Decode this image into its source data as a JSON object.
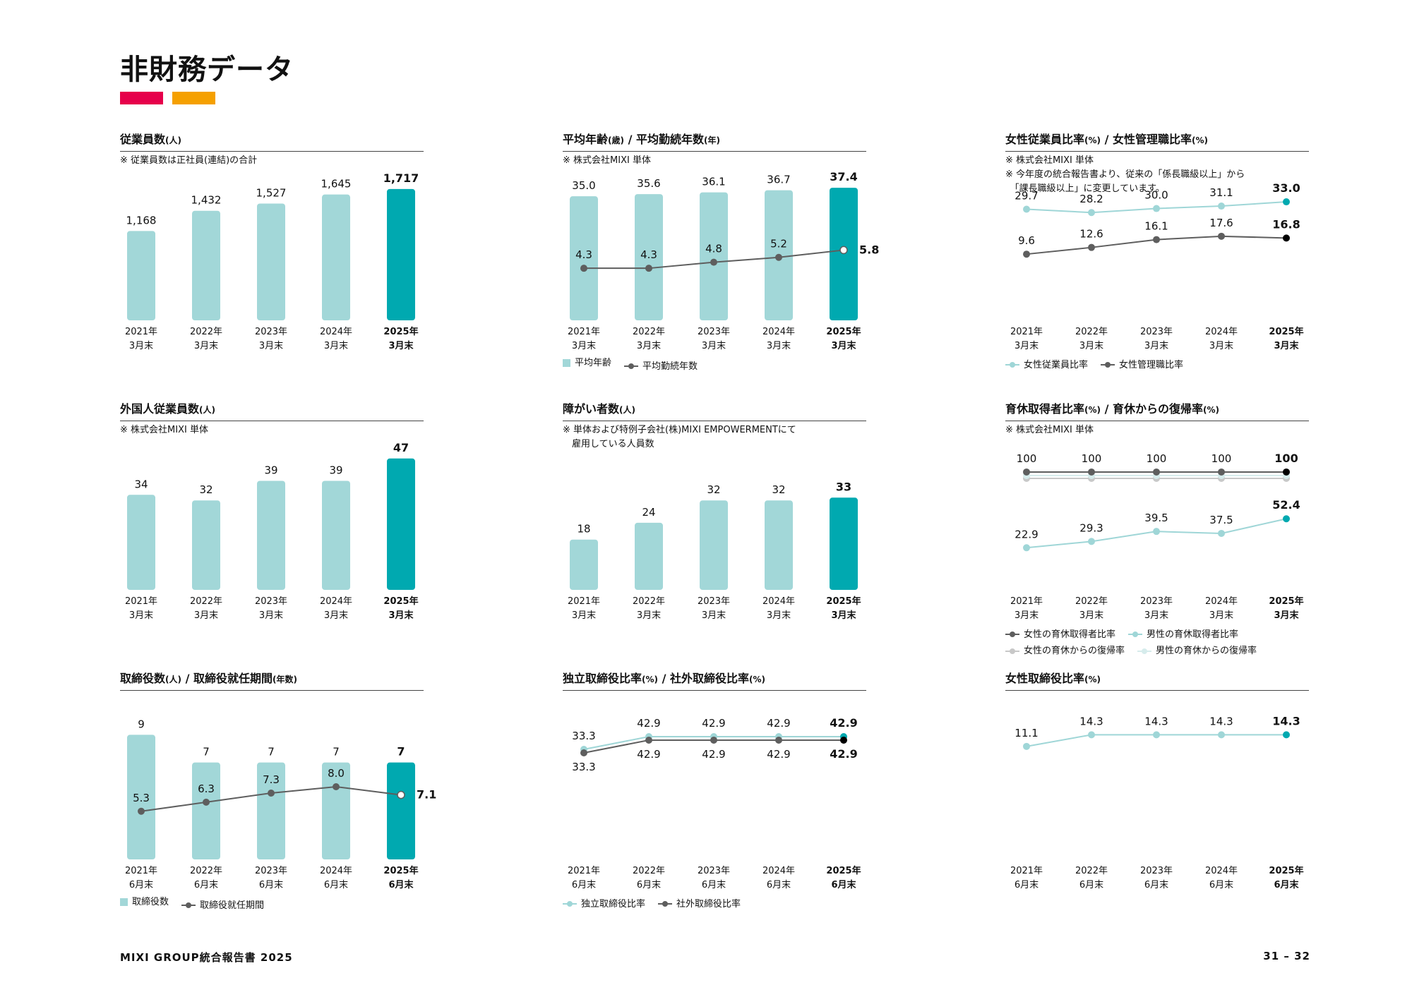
{
  "title": "非財務データ",
  "colors": {
    "accent_red": "#e6004b",
    "accent_orange": "#f5a000",
    "bar_light": "#a2d7d8",
    "bar_dark": "#00a9b0",
    "line_dark": "#5e5e5e",
    "line_light": "#9fd6d7",
    "line_grey": "#c8c8c8",
    "line_pale": "#d6ecec"
  },
  "footer": {
    "left": "MIXI GROUP統合報告書 2025",
    "right": "31 – 32"
  },
  "chart_data": [
    {
      "id": "employees",
      "type": "bar",
      "title": "従業員数",
      "unit": "(人)",
      "notes": [
        "※ 従業員数は正社員(連結)の合計"
      ],
      "categories": [
        [
          "2021年",
          "3月末"
        ],
        [
          "2022年",
          "3月末"
        ],
        [
          "2023年",
          "3月末"
        ],
        [
          "2024年",
          "3月末"
        ],
        [
          "2025年",
          "3月末"
        ]
      ],
      "bars": {
        "name": "",
        "values": [
          1168,
          1432,
          1527,
          1645,
          1717
        ],
        "labels": [
          "1,168",
          "1,432",
          "1,527",
          "1,645",
          "1,717"
        ],
        "ylim": [
          0,
          1900
        ]
      },
      "lines": [],
      "legend": []
    },
    {
      "id": "age-tenure",
      "type": "bar+line",
      "title": "平均年齢",
      "unit": "(歳)",
      "title2": "平均勤続年数",
      "unit2": "(年)",
      "notes": [
        "※ 株式会社MIXI 単体"
      ],
      "categories": [
        [
          "2021年",
          "3月末"
        ],
        [
          "2022年",
          "3月末"
        ],
        [
          "2023年",
          "3月末"
        ],
        [
          "2024年",
          "3月末"
        ],
        [
          "2025年",
          "3月末"
        ]
      ],
      "bars": {
        "name": "平均年齢",
        "values": [
          35.0,
          35.6,
          36.1,
          36.7,
          37.4
        ],
        "labels": [
          "35.0",
          "35.6",
          "36.1",
          "36.7",
          "37.4"
        ],
        "ylim": [
          0,
          41
        ]
      },
      "lines": [
        {
          "name": "平均勤続年数",
          "values": [
            4.3,
            4.3,
            4.8,
            5.2,
            5.8
          ],
          "labels": [
            "4.3",
            "4.3",
            "4.8",
            "5.2",
            "5.8"
          ],
          "color": "#5e5e5e",
          "last_color": "#ffffff",
          "ylim": [
            0,
            12
          ],
          "label_pos": "above"
        }
      ],
      "legend": [
        {
          "kind": "square",
          "label": "平均年齢",
          "color": "#a2d7d8"
        },
        {
          "kind": "line",
          "label": "平均勤続年数",
          "color": "#5e5e5e"
        }
      ]
    },
    {
      "id": "female-ratio",
      "type": "line",
      "title": "女性従業員比率",
      "unit": "(%)",
      "title2": "女性管理職比率",
      "unit2": "(%)",
      "notes": [
        "※ 株式会社MIXI 単体",
        "※ 今年度の統合報告書より、従来の「係長職級以上」から",
        "　「課長職級以上」に変更しています。"
      ],
      "categories": [
        [
          "2021年",
          "3月末"
        ],
        [
          "2022年",
          "3月末"
        ],
        [
          "2023年",
          "3月末"
        ],
        [
          "2024年",
          "3月末"
        ],
        [
          "2025年",
          "3月末"
        ]
      ],
      "bars": null,
      "lines": [
        {
          "name": "女性従業員比率",
          "values": [
            29.7,
            28.2,
            30.0,
            31.1,
            33.0
          ],
          "labels": [
            "29.7",
            "28.2",
            "30.0",
            "31.1",
            "33.0"
          ],
          "color": "#9fd6d7",
          "last_color": "#00a9b0",
          "ylim": [
            -20,
            45
          ],
          "label_pos": "above"
        },
        {
          "name": "女性管理職比率",
          "values": [
            9.6,
            12.6,
            16.1,
            17.6,
            16.8
          ],
          "labels": [
            "9.6",
            "12.6",
            "16.1",
            "17.6",
            "16.8"
          ],
          "color": "#5e5e5e",
          "last_color": "#000000",
          "ylim": [
            -20,
            45
          ],
          "label_pos": "above"
        }
      ],
      "legend": [
        {
          "kind": "line",
          "label": "女性従業員比率",
          "color": "#9fd6d7"
        },
        {
          "kind": "line",
          "label": "女性管理職比率",
          "color": "#5e5e5e"
        }
      ]
    },
    {
      "id": "foreign",
      "type": "bar",
      "title": "外国人従業員数",
      "unit": "(人)",
      "notes": [
        "※ 株式会社MIXI 単体"
      ],
      "categories": [
        [
          "2021年",
          "3月末"
        ],
        [
          "2022年",
          "3月末"
        ],
        [
          "2023年",
          "3月末"
        ],
        [
          "2024年",
          "3月末"
        ],
        [
          "2025年",
          "3月末"
        ]
      ],
      "bars": {
        "name": "",
        "values": [
          34,
          32,
          39,
          39,
          47
        ],
        "labels": [
          "34",
          "32",
          "39",
          "39",
          "47"
        ],
        "ylim": [
          0,
          52
        ]
      },
      "lines": [],
      "legend": []
    },
    {
      "id": "disabled",
      "type": "bar",
      "title": "障がい者数",
      "unit": "(人)",
      "notes": [
        "※ 単体および特例子会社(株)MIXI EMPOWERMENTにて",
        "　雇用している人員数"
      ],
      "categories": [
        [
          "2021年",
          "3月末"
        ],
        [
          "2022年",
          "3月末"
        ],
        [
          "2023年",
          "3月末"
        ],
        [
          "2024年",
          "3月末"
        ],
        [
          "2025年",
          "3月末"
        ]
      ],
      "bars": {
        "name": "",
        "values": [
          18,
          24,
          32,
          32,
          33
        ],
        "labels": [
          "18",
          "24",
          "32",
          "32",
          "33"
        ],
        "ylim": [
          0,
          52
        ]
      },
      "lines": [],
      "legend": []
    },
    {
      "id": "childcare",
      "type": "line",
      "title": "育休取得者比率",
      "unit": "(%)",
      "title2": "育休からの復帰率",
      "unit2": "(%)",
      "notes": [
        "※ 株式会社MIXI 単体"
      ],
      "categories": [
        [
          "2021年",
          "3月末"
        ],
        [
          "2022年",
          "3月末"
        ],
        [
          "2023年",
          "3月末"
        ],
        [
          "2024年",
          "3月末"
        ],
        [
          "2025年",
          "3月末"
        ]
      ],
      "bars": null,
      "lines": [
        {
          "name": "女性の育休からの復帰率",
          "values": [
            100,
            100,
            100,
            100,
            100
          ],
          "labels": [],
          "color": "#c8c8c8",
          "last_color": "#c8c8c8",
          "ylim": [
            -20,
            128
          ],
          "label_pos": "none",
          "offset": 9
        },
        {
          "name": "男性の育休からの復帰率",
          "values": [
            100,
            100,
            100,
            100,
            100
          ],
          "labels": [],
          "color": "#d6ecec",
          "last_color": "#d6ecec",
          "ylim": [
            -20,
            128
          ],
          "label_pos": "none",
          "offset": 5
        },
        {
          "name": "女性の育休取得者比率",
          "values": [
            100,
            100,
            100,
            100,
            100
          ],
          "labels": [
            "100",
            "100",
            "100",
            "100",
            "100"
          ],
          "color": "#5e5e5e",
          "last_color": "#000000",
          "ylim": [
            -20,
            128
          ],
          "label_pos": "above"
        },
        {
          "name": "男性の育休取得者比率",
          "values": [
            22.9,
            29.3,
            39.5,
            37.5,
            52.4
          ],
          "labels": [
            "22.9",
            "29.3",
            "39.5",
            "37.5",
            "52.4"
          ],
          "color": "#9fd6d7",
          "last_color": "#00a9b0",
          "ylim": [
            -20,
            128
          ],
          "label_pos": "above"
        }
      ],
      "legend": [
        {
          "kind": "line",
          "label": "女性の育休取得者比率",
          "color": "#5e5e5e"
        },
        {
          "kind": "line",
          "label": "男性の育休取得者比率",
          "color": "#9fd6d7"
        },
        {
          "kind": "line",
          "label": "女性の育休からの復帰率",
          "color": "#c8c8c8"
        },
        {
          "kind": "line",
          "label": "男性の育休からの復帰率",
          "color": "#d6ecec"
        }
      ]
    },
    {
      "id": "directors",
      "type": "bar+line",
      "title": "取締役数",
      "unit": "(人)",
      "title2": "取締役就任期間",
      "unit2": "(年数)",
      "notes": [],
      "categories": [
        [
          "2021年",
          "6月末"
        ],
        [
          "2022年",
          "6月末"
        ],
        [
          "2023年",
          "6月末"
        ],
        [
          "2024年",
          "6月末"
        ],
        [
          "2025年",
          "6月末"
        ]
      ],
      "bars": {
        "name": "取締役数",
        "values": [
          9,
          7,
          7,
          7,
          7
        ],
        "labels": [
          "9",
          "7",
          "7",
          "7",
          "7"
        ],
        "ylim": [
          0,
          10.5
        ]
      },
      "lines": [
        {
          "name": "取締役就任期間",
          "values": [
            5.3,
            6.3,
            7.3,
            8.0,
            7.1
          ],
          "labels": [
            "5.3",
            "6.3",
            "7.3",
            "8.0",
            "7.1"
          ],
          "color": "#5e5e5e",
          "last_color": "#ffffff",
          "ylim": [
            0,
            16
          ],
          "label_pos": "above"
        }
      ],
      "legend": [
        {
          "kind": "square",
          "label": "取締役数",
          "color": "#a2d7d8"
        },
        {
          "kind": "line",
          "label": "取締役就任期間",
          "color": "#5e5e5e"
        }
      ]
    },
    {
      "id": "independent",
      "type": "line",
      "title": "独立取締役比率",
      "unit": "(%)",
      "title2": "社外取締役比率",
      "unit2": "(%)",
      "notes": [],
      "categories": [
        [
          "2021年",
          "6月末"
        ],
        [
          "2022年",
          "6月末"
        ],
        [
          "2023年",
          "6月末"
        ],
        [
          "2024年",
          "6月末"
        ],
        [
          "2025年",
          "6月末"
        ]
      ],
      "bars": null,
      "lines": [
        {
          "name": "独立取締役比率",
          "values": [
            33.3,
            42.9,
            42.9,
            42.9,
            42.9
          ],
          "labels": [
            "33.3",
            "42.9",
            "42.9",
            "42.9",
            "42.9"
          ],
          "color": "#9fd6d7",
          "last_color": "#00a9b0",
          "ylim": [
            -50,
            60
          ],
          "label_pos": "above"
        },
        {
          "name": "社外取締役比率",
          "values": [
            33.3,
            42.9,
            42.9,
            42.9,
            42.9
          ],
          "labels": [
            "33.3",
            "42.9",
            "42.9",
            "42.9",
            "42.9"
          ],
          "color": "#5e5e5e",
          "last_color": "#000000",
          "ylim": [
            -50,
            60
          ],
          "label_pos": "below",
          "offset": 5
        }
      ],
      "legend": [
        {
          "kind": "line",
          "label": "独立取締役比率",
          "color": "#9fd6d7"
        },
        {
          "kind": "line",
          "label": "社外取締役比率",
          "color": "#5e5e5e"
        }
      ]
    },
    {
      "id": "female-directors",
      "type": "line",
      "title": "女性取締役比率",
      "unit": "(%)",
      "notes": [],
      "categories": [
        [
          "2021年",
          "6月末"
        ],
        [
          "2022年",
          "6月末"
        ],
        [
          "2023年",
          "6月末"
        ],
        [
          "2024年",
          "6月末"
        ],
        [
          "2025年",
          "6月末"
        ]
      ],
      "bars": null,
      "lines": [
        {
          "name": "女性取締役比率",
          "values": [
            11.1,
            14.3,
            14.3,
            14.3,
            14.3
          ],
          "labels": [
            "11.1",
            "14.3",
            "14.3",
            "14.3",
            "14.3"
          ],
          "color": "#9fd6d7",
          "last_color": "#00a9b0",
          "ylim": [
            -20,
            20
          ],
          "label_pos": "above"
        }
      ],
      "legend": []
    }
  ]
}
